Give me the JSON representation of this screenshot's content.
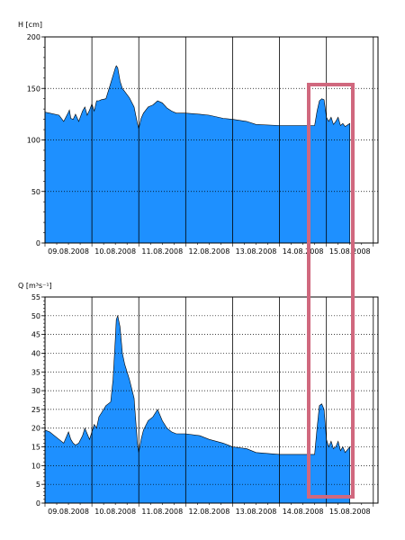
{
  "colors": {
    "fill": "#1e90ff",
    "outline": "#000000",
    "highlight": "#d0687e",
    "grid": "#000000"
  },
  "chart_data": [
    {
      "type": "area",
      "ylabel": "H [cm]",
      "ylim": [
        0,
        200
      ],
      "y_ticks": [
        0,
        50,
        100,
        150,
        200
      ],
      "x_range": [
        0,
        7.1
      ],
      "x_tick_labels": [
        "09.08.2008",
        "10.08.2008",
        "11.08.2008",
        "12.08.2008",
        "13.08.2008",
        "14.08.2008",
        "15.08.2008"
      ],
      "x_tick_positions": [
        0.5,
        1.5,
        2.5,
        3.5,
        4.5,
        5.5,
        6.5
      ],
      "day_boundaries": [
        1,
        2,
        3,
        4,
        5,
        6,
        7
      ],
      "grid": "horizontal dashed, vertical solid at day boundaries",
      "series": [
        {
          "x": [
            0,
            0.1,
            0.3,
            0.4,
            0.5,
            0.52,
            0.55,
            0.6,
            0.65,
            0.72,
            0.8,
            0.85,
            0.9,
            0.95,
            1.0,
            1.05,
            1.1,
            1.15,
            1.2,
            1.3,
            1.4,
            1.5,
            1.52,
            1.55,
            1.6,
            1.65,
            1.7,
            1.8,
            1.9,
            1.97,
            2.0,
            2.05,
            2.1,
            2.2,
            2.3,
            2.4,
            2.5,
            2.6,
            2.7,
            2.8,
            3.0,
            3.3,
            3.5,
            3.8,
            4.0,
            4.3,
            4.5,
            5.0,
            5.5,
            5.75,
            5.8,
            5.85,
            5.9,
            5.95,
            6.0,
            6.05,
            6.1,
            6.15,
            6.2,
            6.25,
            6.3,
            6.35,
            6.4,
            6.5
          ],
          "y": [
            127,
            126,
            124,
            118,
            127,
            129,
            121,
            120,
            125,
            118,
            128,
            132,
            124,
            129,
            135,
            128,
            138,
            138,
            139,
            140,
            155,
            170,
            172,
            170,
            157,
            150,
            147,
            141,
            132,
            116,
            111,
            121,
            126,
            132,
            134,
            138,
            136,
            131,
            128,
            126,
            126,
            125,
            124,
            121,
            120,
            118,
            115,
            114,
            114,
            114,
            128,
            138,
            140,
            139,
            122,
            118,
            122,
            115,
            118,
            122,
            114,
            116,
            113,
            116
          ]
        }
      ]
    },
    {
      "type": "area",
      "ylabel": "Q [m³s⁻¹]",
      "ylim": [
        0,
        55
      ],
      "y_ticks": [
        0,
        5,
        10,
        15,
        20,
        25,
        30,
        35,
        40,
        45,
        50,
        55
      ],
      "x_range": [
        0,
        7.1
      ],
      "x_tick_labels": [
        "09.08.2008",
        "10.08.2008",
        "11.08.2008",
        "12.08.2008",
        "13.08.2008",
        "14.08.2008",
        "15.08.2008"
      ],
      "x_tick_positions": [
        0.5,
        1.5,
        2.5,
        3.5,
        4.5,
        5.5,
        6.5
      ],
      "day_boundaries": [
        1,
        2,
        3,
        4,
        5,
        6,
        7
      ],
      "grid": "horizontal dashed, vertical solid at day boundaries",
      "series": [
        {
          "x": [
            0,
            0.1,
            0.3,
            0.4,
            0.5,
            0.55,
            0.6,
            0.65,
            0.72,
            0.8,
            0.85,
            0.9,
            0.95,
            1.0,
            1.05,
            1.1,
            1.15,
            1.2,
            1.3,
            1.4,
            1.45,
            1.5,
            1.52,
            1.55,
            1.6,
            1.65,
            1.7,
            1.8,
            1.9,
            1.97,
            2.0,
            2.05,
            2.1,
            2.2,
            2.3,
            2.4,
            2.5,
            2.6,
            2.7,
            2.8,
            3.0,
            3.3,
            3.5,
            3.8,
            4.0,
            4.3,
            4.5,
            5.0,
            5.5,
            5.75,
            5.8,
            5.85,
            5.9,
            5.95,
            6.0,
            6.05,
            6.1,
            6.15,
            6.2,
            6.25,
            6.3,
            6.35,
            6.4,
            6.5
          ],
          "y": [
            19.5,
            19,
            17,
            16,
            19,
            17,
            16,
            15.5,
            16,
            18,
            20,
            18.5,
            17,
            19,
            21,
            20,
            23,
            24,
            26,
            27,
            33,
            44,
            49,
            50,
            47,
            40,
            37,
            33,
            28,
            16,
            13.5,
            17,
            19.5,
            22,
            23,
            25,
            22,
            20,
            19,
            18.5,
            18.5,
            18,
            17,
            16,
            15,
            14.5,
            13.5,
            13,
            13,
            13,
            20,
            26,
            26.5,
            25,
            17,
            15,
            16.5,
            14.5,
            15,
            16.5,
            14,
            15,
            13.5,
            15
          ]
        }
      ]
    }
  ]
}
